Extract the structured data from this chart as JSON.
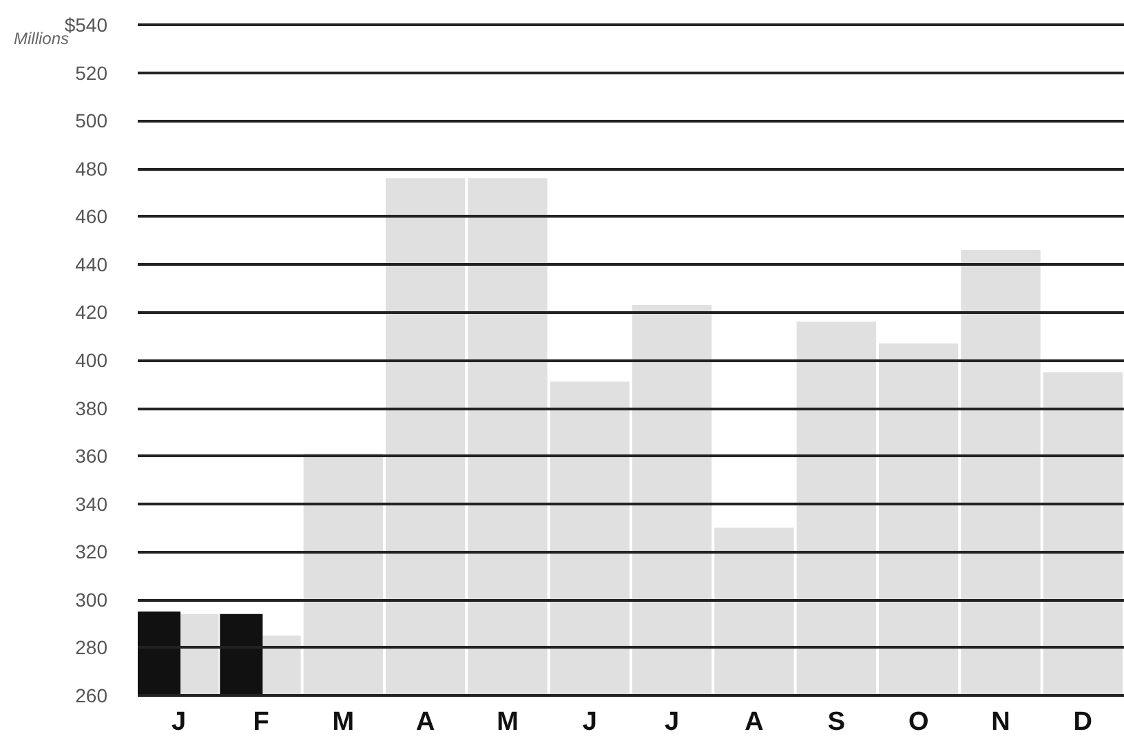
{
  "chart_data": {
    "type": "bar",
    "ylabel": "Millions",
    "categories": [
      "J",
      "F",
      "M",
      "A",
      "M",
      "J",
      "J",
      "A",
      "S",
      "O",
      "N",
      "D"
    ],
    "series": [
      {
        "color": "#e0e0e0",
        "values": [
          294,
          285,
          361,
          476,
          476,
          391,
          423,
          330,
          416,
          407,
          446,
          395
        ]
      },
      {
        "color": "#111111",
        "values": [
          295,
          294,
          null,
          null,
          null,
          null,
          null,
          null,
          null,
          null,
          null,
          null
        ]
      }
    ],
    "ylim": [
      260,
      540
    ],
    "yticks": [
      260,
      280,
      300,
      320,
      340,
      360,
      380,
      400,
      420,
      440,
      460,
      480,
      500,
      520,
      {
        "value": 540,
        "label": "$540"
      }
    ],
    "grid": "y"
  }
}
